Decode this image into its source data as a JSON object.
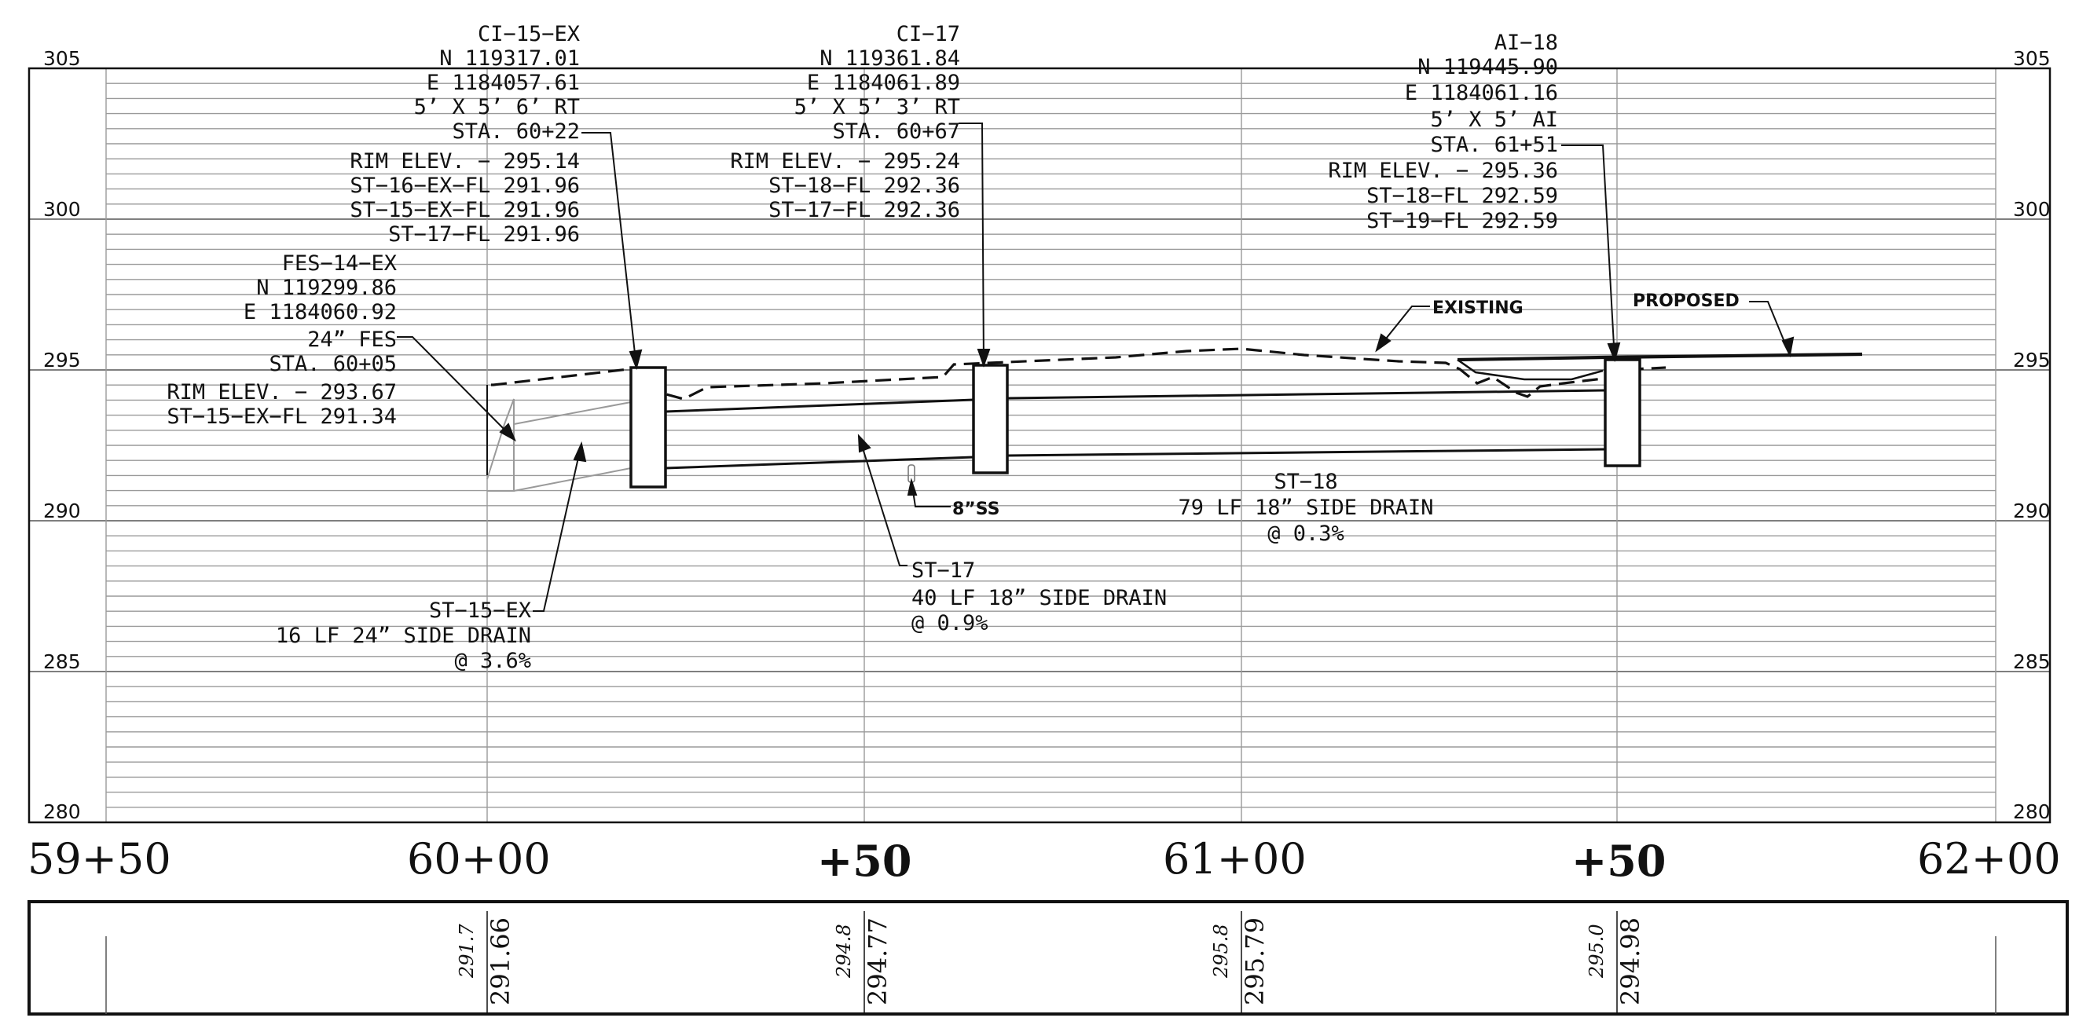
{
  "elevation_labels": {
    "e305": "305",
    "e300": "300",
    "e295": "295",
    "e290": "290",
    "e285": "285",
    "e280": "280"
  },
  "stations": {
    "s1": "59+50",
    "s2": "60+00",
    "s3": "+50",
    "s4": "61+00",
    "s5": "+50",
    "s6": "62+00"
  },
  "structures": {
    "ci15": [
      "CI−15−EX",
      "N 119317.01",
      "E 1184057.61",
      "5’ X 5’ 6’ RT",
      "STA. 60+22",
      "RIM ELEV. − 295.14",
      "ST−16−EX−FL 291.96",
      "ST−15−EX−FL 291.96",
      "ST−17−FL 291.96"
    ],
    "fes14": [
      "FES−14−EX",
      "N 119299.86",
      "E 1184060.92",
      "24” FES",
      "STA. 60+05",
      "RIM ELEV. − 293.67",
      "ST−15−EX−FL 291.34"
    ],
    "ci17": [
      "CI−17",
      "N 119361.84",
      "E 1184061.89",
      "5’ X 5’ 3’ RT",
      "STA. 60+67",
      "RIM ELEV. − 295.24",
      "ST−18−FL 292.36",
      "ST−17−FL 292.36"
    ],
    "ai18": [
      "AI−18",
      "N 119445.90",
      "E 1184061.16",
      "5’ X 5’ AI",
      "STA. 61+51",
      "RIM ELEV. − 295.36",
      "ST−18−FL 292.59",
      "ST−19−FL 292.59"
    ]
  },
  "pipes": {
    "st15": [
      "ST−15−EX",
      "16 LF 24” SIDE DRAIN",
      "@ 3.6%"
    ],
    "st17": [
      "ST−17",
      "40 LF 18” SIDE DRAIN",
      "@ 0.9%"
    ],
    "st18": [
      "ST−18",
      "79 LF 18” SIDE DRAIN",
      "@ 0.3%"
    ]
  },
  "callouts": {
    "existing": "EXISTING",
    "proposed": "PROPOSED",
    "sanitary": "8”SS"
  },
  "elevation_strip": {
    "sta_60_00": {
      "existing": "291.7",
      "proposed": "291.66"
    },
    "sta_60_50": {
      "existing": "294.8",
      "proposed": "294.77"
    },
    "sta_61_00": {
      "existing": "295.8",
      "proposed": "295.79"
    },
    "sta_61_50": {
      "existing": "295.0",
      "proposed": "294.98"
    }
  }
}
